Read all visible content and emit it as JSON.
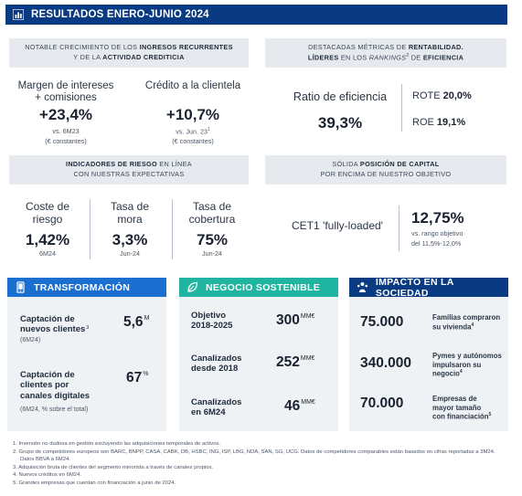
{
  "header": {
    "title": "RESULTADOS ENERO-JUNIO 2024"
  },
  "band_growth": {
    "pre1": "NOTABLE CRECIMIENTO DE LOS ",
    "b1": "INGRESOS RECURRENTES",
    "pre2": "Y DE LA ",
    "b2": "ACTIVIDAD CREDITICIA"
  },
  "band_profit": {
    "pre1": "DESTACADAS MÉTRICAS DE ",
    "b1": "RENTABILIDAD.",
    "b2": "LÍDERES",
    "mid": " EN LOS ",
    "rk": "RANKINGS",
    "sup": "2",
    "pre2": " DE ",
    "b3": "EFICIENCIA"
  },
  "band_risk": {
    "b1": "INDICADORES DE RIESGO",
    "post1": " EN LÍNEA",
    "line2": "CON NUESTRAS EXPECTATIVAS"
  },
  "band_capital": {
    "pre1": "SÓLIDA ",
    "b1": "POSICIÓN DE CAPITAL",
    "line2": "POR ENCIMA DE NUESTRO OBJETIVO"
  },
  "growth": {
    "margin": {
      "label1": "Margen de intereses",
      "label2": "+ comisiones",
      "value": "+23,4%",
      "sub1": "vs. 6M23",
      "sub2": "(€ constantes)"
    },
    "credit": {
      "label": "Crédito a la clientela",
      "value": "+10,7%",
      "sub1": "vs. Jun. 23",
      "sup": "1",
      "sub2": "(€ constantes)"
    }
  },
  "profit": {
    "label": "Ratio de eficiencia",
    "value": "39,3%",
    "rote_label": "ROTE",
    "rote_value": "20,0%",
    "roe_label": "ROE",
    "roe_value": "19,1%"
  },
  "risk": [
    {
      "label1": "Coste de",
      "label2": "riesgo",
      "value": "1,42%",
      "sub": "6M24"
    },
    {
      "label1": "Tasa de",
      "label2": "mora",
      "value": "3,3%",
      "sub": "Jun-24"
    },
    {
      "label1": "Tasa de",
      "label2": "cobertura",
      "value": "75%",
      "sub": "Jun-24"
    }
  ],
  "capital": {
    "label": "CET1 'fully-loaded'",
    "value": "12,75%",
    "sub1": "vs. rango objetivo",
    "sub2": "del 11,5%-12,0%"
  },
  "transformacion": {
    "title": "TRANSFORMACIÓN",
    "item1": {
      "label1": "Captación de",
      "label2": "nuevos clientes",
      "sup": "3",
      "sub": "(6M24)",
      "value": "5,6",
      "unit": "M"
    },
    "item2": {
      "label1": "Captación de",
      "label2": "clientes por",
      "label3": "canales digitales",
      "sub": "(6M24, % sobre el total)",
      "value": "67",
      "unit": "%"
    }
  },
  "sostenible": {
    "title": "NEGOCIO SOSTENIBLE",
    "items": [
      {
        "label1": "Objetivo",
        "label2": "2018-2025",
        "value": "300",
        "unit": "MM€"
      },
      {
        "label1": "Canalizados",
        "label2": "desde 2018",
        "value": "252",
        "unit": "MM€"
      },
      {
        "label1": "Canalizados",
        "label2": "en 6M24",
        "value": "46",
        "unit": "MM€"
      }
    ]
  },
  "sociedad": {
    "title": "IMPACTO EN LA SOCIEDAD",
    "items": [
      {
        "value": "75.000",
        "d1": "Familias compraron",
        "d2": "su vivienda",
        "d3": "",
        "sup": "4"
      },
      {
        "value": "340.000",
        "d1": "Pymes y autónomos",
        "d2": "impulsaron su",
        "d3": "negocio",
        "sup": "4"
      },
      {
        "value": "70.000",
        "d1": "Empresas de",
        "d2": "mayor tamaño",
        "d3": "con financiación",
        "sup": "5"
      }
    ]
  },
  "notes": [
    "1.  Inversión no dudosa en gestión excluyendo las adquisiciones temporales de activos.",
    "2.  Grupo de competidores europeos son BARC, BNPP, CASA, CABK, DB, HSBC, ING, ISP, LBG, NDA, SAN, SG, UCG. Datos de competidores comparables están basados en cifras reportadas a 3M24. Datos BBVA a 6M24.",
    "3.  Adquisición bruta de clientes del segmento minorista a través de canales propios.",
    "4.  Nuevos créditos en 6M24.",
    "5.  Grandes empresas que cuentan con financiación a junio de 2024."
  ],
  "colors": {
    "navy": "#0a3a82",
    "blue": "#1a6fd1",
    "green": "#20b5a0",
    "band": "#e6eaef"
  }
}
